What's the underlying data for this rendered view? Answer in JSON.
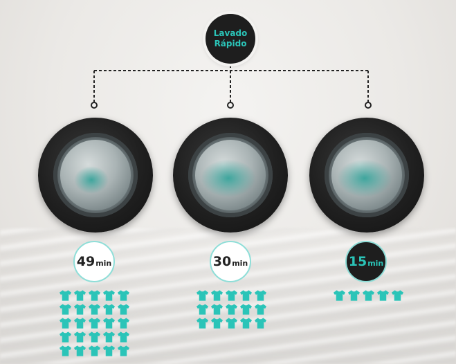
{
  "badge": {
    "line1": "Lavado",
    "line2": "Rápido"
  },
  "colors": {
    "accent": "#2bc4b8",
    "dark": "#1e1e1e",
    "ring": "#8fded8"
  },
  "machines": [
    {
      "time_value": "49",
      "time_unit": "min",
      "load_count": 25,
      "dark": false
    },
    {
      "time_value": "30",
      "time_unit": "min",
      "load_count": 15,
      "dark": false
    },
    {
      "time_value": "15",
      "time_unit": "min",
      "load_count": 5,
      "dark": true
    }
  ],
  "icons": {
    "load": "tshirt-icon"
  }
}
